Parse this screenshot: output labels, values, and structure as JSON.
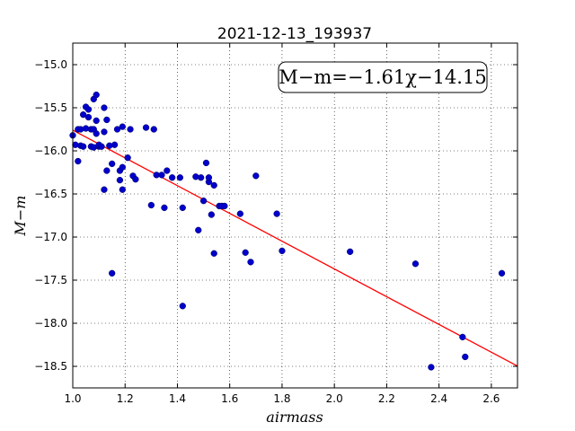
{
  "chart_data": {
    "type": "scatter",
    "title": "2021-12-13_193937",
    "xlabel": "airmass",
    "ylabel": "M−m",
    "annotation": "M−m=−1.61χ−14.15",
    "xlim": [
      1.0,
      2.7
    ],
    "ylim": [
      -18.75,
      -14.75
    ],
    "y_inverted": true,
    "grid": true,
    "xticks": [
      1.0,
      1.2,
      1.4,
      1.6,
      1.8,
      2.0,
      2.2,
      2.4,
      2.6
    ],
    "xtick_labels": [
      "1.0",
      "1.2",
      "1.4",
      "1.6",
      "1.8",
      "2.0",
      "2.2",
      "2.4",
      "2.6"
    ],
    "yticks": [
      -15.0,
      -15.5,
      -16.0,
      -16.5,
      -17.0,
      -17.5,
      -18.0,
      -18.5
    ],
    "ytick_labels": [
      "−15.0",
      "−15.5",
      "−16.0",
      "−16.5",
      "−17.0",
      "−17.5",
      "−18.0",
      "−18.5"
    ],
    "fit": {
      "slope": -1.61,
      "intercept": -14.15,
      "x_range": [
        1.0,
        2.7
      ],
      "color": "#ff0000"
    },
    "point_color": "#0000cc",
    "points": [
      [
        1.0,
        -15.82
      ],
      [
        1.01,
        -15.93
      ],
      [
        1.02,
        -15.75
      ],
      [
        1.02,
        -16.12
      ],
      [
        1.03,
        -15.94
      ],
      [
        1.03,
        -15.75
      ],
      [
        1.04,
        -15.58
      ],
      [
        1.04,
        -15.95
      ],
      [
        1.05,
        -15.74
      ],
      [
        1.05,
        -15.49
      ],
      [
        1.06,
        -15.52
      ],
      [
        1.06,
        -15.61
      ],
      [
        1.07,
        -15.75
      ],
      [
        1.07,
        -15.95
      ],
      [
        1.08,
        -15.4
      ],
      [
        1.08,
        -15.96
      ],
      [
        1.08,
        -15.75
      ],
      [
        1.09,
        -15.35
      ],
      [
        1.09,
        -15.65
      ],
      [
        1.09,
        -15.8
      ],
      [
        1.1,
        -15.95
      ],
      [
        1.1,
        -15.93
      ],
      [
        1.11,
        -15.95
      ],
      [
        1.12,
        -15.78
      ],
      [
        1.12,
        -16.45
      ],
      [
        1.12,
        -15.5
      ],
      [
        1.13,
        -15.64
      ],
      [
        1.13,
        -16.23
      ],
      [
        1.14,
        -15.94
      ],
      [
        1.15,
        -16.15
      ],
      [
        1.15,
        -17.42
      ],
      [
        1.16,
        -15.93
      ],
      [
        1.17,
        -15.75
      ],
      [
        1.18,
        -16.23
      ],
      [
        1.18,
        -16.34
      ],
      [
        1.19,
        -15.72
      ],
      [
        1.19,
        -16.45
      ],
      [
        1.19,
        -16.19
      ],
      [
        1.21,
        -16.08
      ],
      [
        1.22,
        -15.75
      ],
      [
        1.23,
        -16.29
      ],
      [
        1.24,
        -16.33
      ],
      [
        1.28,
        -15.73
      ],
      [
        1.3,
        -16.63
      ],
      [
        1.31,
        -15.75
      ],
      [
        1.32,
        -16.28
      ],
      [
        1.34,
        -16.28
      ],
      [
        1.35,
        -16.66
      ],
      [
        1.36,
        -16.23
      ],
      [
        1.38,
        -16.31
      ],
      [
        1.41,
        -16.31
      ],
      [
        1.42,
        -16.66
      ],
      [
        1.42,
        -17.8
      ],
      [
        1.47,
        -16.3
      ],
      [
        1.48,
        -16.92
      ],
      [
        1.49,
        -16.31
      ],
      [
        1.5,
        -16.58
      ],
      [
        1.51,
        -16.14
      ],
      [
        1.52,
        -16.36
      ],
      [
        1.52,
        -16.31
      ],
      [
        1.53,
        -16.74
      ],
      [
        1.54,
        -16.4
      ],
      [
        1.54,
        -17.19
      ],
      [
        1.56,
        -16.64
      ],
      [
        1.57,
        -16.64
      ],
      [
        1.58,
        -16.64
      ],
      [
        1.64,
        -16.73
      ],
      [
        1.66,
        -17.18
      ],
      [
        1.68,
        -17.29
      ],
      [
        1.7,
        -16.29
      ],
      [
        1.78,
        -16.73
      ],
      [
        1.8,
        -17.16
      ],
      [
        2.06,
        -17.17
      ],
      [
        2.31,
        -17.31
      ],
      [
        2.37,
        -18.51
      ],
      [
        2.49,
        -18.16
      ],
      [
        2.5,
        -18.39
      ],
      [
        2.64,
        -17.42
      ]
    ]
  }
}
